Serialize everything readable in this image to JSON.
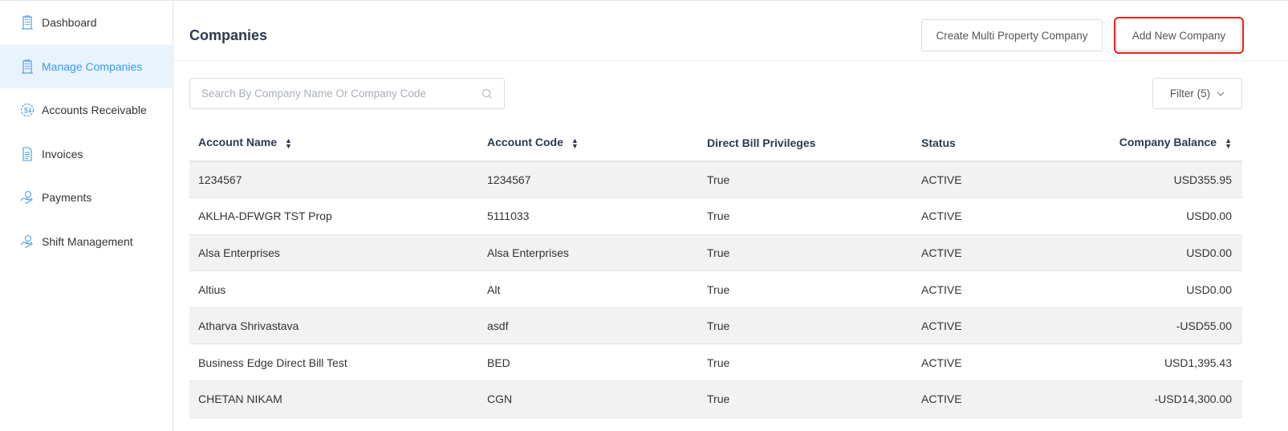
{
  "sidebar": {
    "items": [
      {
        "label": "Dashboard",
        "icon": "building-icon"
      },
      {
        "label": "Manage Companies",
        "icon": "building-icon",
        "active": true
      },
      {
        "label": "Accounts Receivable",
        "icon": "dollar-circle-icon"
      },
      {
        "label": "Invoices",
        "icon": "document-icon"
      },
      {
        "label": "Payments",
        "icon": "hand-coin-icon"
      },
      {
        "label": "Shift Management",
        "icon": "hand-coin-icon"
      }
    ]
  },
  "header": {
    "title": "Companies",
    "create_multi_label": "Create Multi Property Company",
    "add_new_label": "Add New Company",
    "highlight_color": "#e8231b"
  },
  "search": {
    "placeholder": "Search By Company Name Or Company Code",
    "value": ""
  },
  "filter": {
    "label": "Filter (5)"
  },
  "table": {
    "columns": [
      "Account Name",
      "Account Code",
      "Direct Bill Privileges",
      "Status",
      "Company Balance"
    ],
    "rows": [
      [
        "1234567",
        "1234567",
        "True",
        "ACTIVE",
        "USD355.95"
      ],
      [
        "AKLHA-DFWGR TST Prop",
        "5111033",
        "True",
        "ACTIVE",
        "USD0.00"
      ],
      [
        "Alsa Enterprises",
        "Alsa Enterprises",
        "True",
        "ACTIVE",
        "USD0.00"
      ],
      [
        "Altius",
        "Alt",
        "True",
        "ACTIVE",
        "USD0.00"
      ],
      [
        "Atharva Shrivastava",
        "asdf",
        "True",
        "ACTIVE",
        "-USD55.00"
      ],
      [
        "Business Edge Direct Bill Test",
        "BED",
        "True",
        "ACTIVE",
        "USD1,395.43"
      ],
      [
        "CHETAN NIKAM",
        "CGN",
        "True",
        "ACTIVE",
        "-USD14,300.00"
      ]
    ]
  },
  "colors": {
    "accent": "#3a9bf0",
    "active_bg": "#e8f3fe",
    "row_alt": "#f2f2f2"
  }
}
